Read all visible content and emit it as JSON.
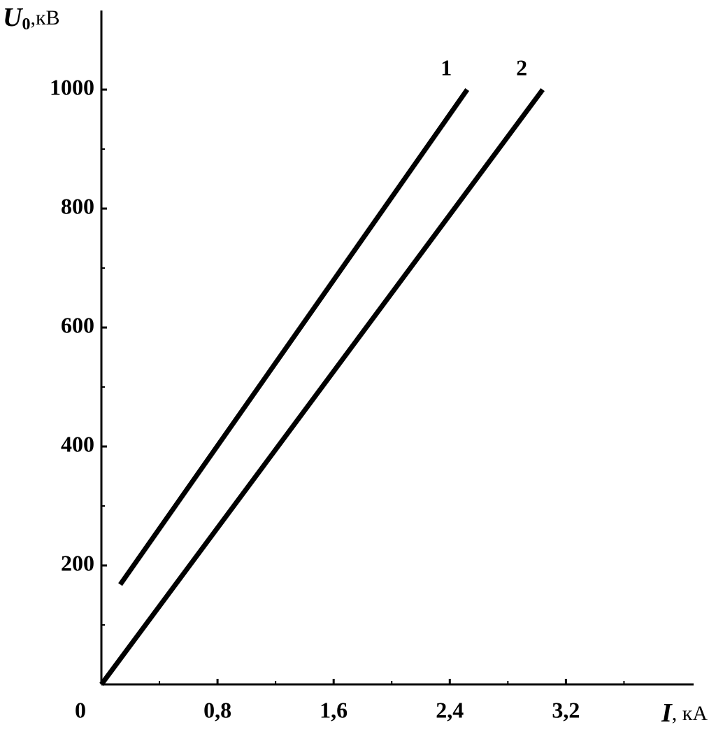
{
  "chart_data": {
    "type": "line",
    "y_label": {
      "symbol": "U",
      "subscript": "0",
      "unit": ",кВ"
    },
    "x_label": {
      "symbol": "I",
      "unit": ", кА"
    },
    "series": [
      {
        "name": "1",
        "color": "#000000",
        "x": [
          0.13,
          2.52
        ],
        "values": [
          168,
          1000
        ]
      },
      {
        "name": "2",
        "color": "#000000",
        "x": [
          0,
          3.04
        ],
        "values": [
          0,
          1000
        ]
      }
    ],
    "xlim": [
      0,
      4.07
    ],
    "ylim": [
      0,
      1133
    ],
    "xticks": [
      0,
      {
        "value": 0.8,
        "label": "0,8"
      },
      {
        "value": 1.6,
        "label": "1,6"
      },
      {
        "value": 2.4,
        "label": "2,4"
      },
      {
        "value": 3.2,
        "label": "3,2"
      }
    ],
    "xminor": [
      0.4,
      1.2,
      2.0,
      2.8,
      3.6
    ],
    "yticks": [
      200,
      400,
      600,
      800,
      1000
    ],
    "yminor": [
      100,
      300,
      500,
      700,
      900
    ],
    "grid": false
  }
}
